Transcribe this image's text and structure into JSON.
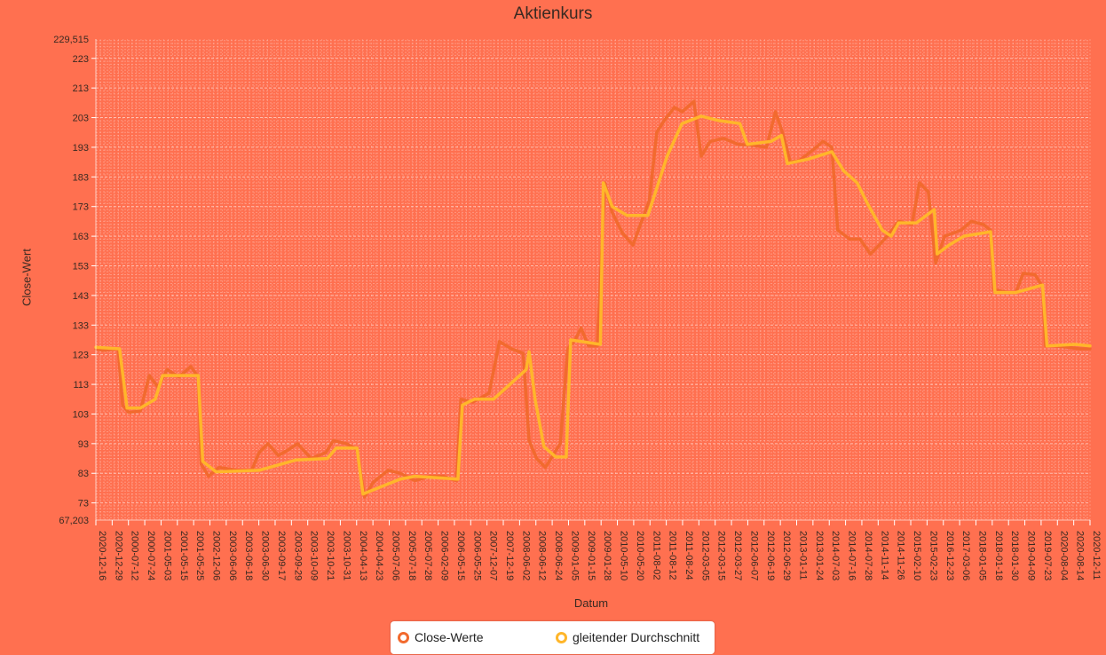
{
  "chart_data": {
    "type": "line",
    "title": "Aktienkurs",
    "xlabel": "Datum",
    "ylabel": "Close-Wert",
    "ylim": [
      67.203,
      229.515
    ],
    "y_ticks": [
      "73",
      "83",
      "93",
      "103",
      "113",
      "123",
      "133",
      "143",
      "153",
      "163",
      "173",
      "183",
      "193",
      "203",
      "213",
      "223"
    ],
    "y_extremes": [
      "67,203",
      "229,515"
    ],
    "x_tick_labels": [
      "2020-12-16",
      "2020-12-29",
      "2000-07-12",
      "2000-07-24",
      "2001-05-03",
      "2001-05-15",
      "2001-05-25",
      "2002-12-06",
      "2003-06-06",
      "2003-06-18",
      "2003-06-30",
      "2003-09-17",
      "2003-09-29",
      "2003-10-09",
      "2003-10-21",
      "2003-10-31",
      "2004-04-13",
      "2004-04-23",
      "2005-07-06",
      "2005-07-18",
      "2005-07-28",
      "2006-02-09",
      "2006-05-15",
      "2006-05-25",
      "2007-12-07",
      "2007-12-19",
      "2008-06-02",
      "2008-06-12",
      "2008-06-24",
      "2009-01-05",
      "2009-01-15",
      "2009-01-28",
      "2010-05-10",
      "2010-05-20",
      "2011-08-02",
      "2011-08-12",
      "2011-08-24",
      "2012-03-05",
      "2012-03-15",
      "2012-03-27",
      "2012-06-07",
      "2012-06-19",
      "2012-06-29",
      "2013-01-11",
      "2013-01-24",
      "2014-07-03",
      "2014-07-16",
      "2014-07-28",
      "2014-11-14",
      "2014-11-26",
      "2015-02-10",
      "2015-02-23",
      "2016-12-23",
      "2017-03-06",
      "2018-01-05",
      "2018-01-18",
      "2018-01-30",
      "2019-04-09",
      "2019-07-23",
      "2020-08-04",
      "2020-08-14",
      "2020-12-11"
    ],
    "grid": true,
    "legend_position": "bottom",
    "series": [
      {
        "name": "Close-Werte",
        "color": "#f26a2e",
        "points": [
          [
            0,
            125
          ],
          [
            0.5,
            124.5
          ],
          [
            1.5,
            125
          ],
          [
            1.8,
            106
          ],
          [
            2.2,
            103.5
          ],
          [
            3,
            104
          ],
          [
            3.6,
            116
          ],
          [
            4.2,
            112
          ],
          [
            4.8,
            118
          ],
          [
            5.6,
            115.5
          ],
          [
            6.4,
            119
          ],
          [
            6.9,
            115.5
          ],
          [
            7.1,
            86
          ],
          [
            7.6,
            82
          ],
          [
            8.3,
            85
          ],
          [
            9.5,
            84
          ],
          [
            10.5,
            84
          ],
          [
            11,
            90
          ],
          [
            11.6,
            93
          ],
          [
            12.3,
            89
          ],
          [
            13,
            91
          ],
          [
            13.6,
            93
          ],
          [
            14.5,
            88
          ],
          [
            15.5,
            90
          ],
          [
            16,
            94
          ],
          [
            16.9,
            93
          ],
          [
            17.6,
            91
          ],
          [
            18.1,
            75
          ],
          [
            18.7,
            80
          ],
          [
            19.7,
            84
          ],
          [
            20.5,
            83
          ],
          [
            21.5,
            80.5
          ],
          [
            22.5,
            82
          ],
          [
            23.4,
            82
          ],
          [
            24.3,
            80.5
          ],
          [
            24.6,
            108
          ],
          [
            25.4,
            107
          ],
          [
            26.5,
            110
          ],
          [
            27.2,
            127.5
          ],
          [
            28,
            125
          ],
          [
            28.8,
            123.5
          ],
          [
            29.2,
            94
          ],
          [
            29.7,
            88
          ],
          [
            30.3,
            85
          ],
          [
            31.3,
            93
          ],
          [
            31.8,
            125
          ],
          [
            32.3,
            128
          ],
          [
            32.7,
            132
          ],
          [
            33.2,
            126
          ],
          [
            33.8,
            126
          ],
          [
            34.3,
            181
          ],
          [
            34.8,
            171
          ],
          [
            35.5,
            164
          ],
          [
            36.2,
            160
          ],
          [
            36.7,
            167
          ],
          [
            37.3,
            175
          ],
          [
            37.8,
            198
          ],
          [
            38.3,
            202
          ],
          [
            39,
            206.5
          ],
          [
            39.5,
            205
          ],
          [
            40.3,
            208.5
          ],
          [
            40.8,
            190
          ],
          [
            41.4,
            195
          ],
          [
            42.3,
            196
          ],
          [
            43.3,
            194
          ],
          [
            44.5,
            193.5
          ],
          [
            45.2,
            193
          ],
          [
            45.8,
            205
          ],
          [
            46.3,
            197.5
          ],
          [
            46.8,
            188
          ],
          [
            47.4,
            188.5
          ],
          [
            48.3,
            192
          ],
          [
            49,
            195
          ],
          [
            49.6,
            193
          ],
          [
            50,
            165
          ],
          [
            50.8,
            162
          ],
          [
            51.5,
            162
          ],
          [
            52.2,
            157
          ],
          [
            52.8,
            160
          ],
          [
            53.5,
            164
          ],
          [
            54.1,
            168
          ],
          [
            55,
            167
          ],
          [
            55.5,
            181
          ],
          [
            56.1,
            178
          ],
          [
            56.6,
            154
          ],
          [
            57.2,
            163
          ],
          [
            58.3,
            165
          ],
          [
            59,
            168
          ],
          [
            59.8,
            167
          ],
          [
            60.3,
            165
          ],
          [
            60.5,
            145
          ],
          [
            61.5,
            144
          ],
          [
            62,
            144
          ],
          [
            62.5,
            150.5
          ],
          [
            63.3,
            150
          ],
          [
            63.8,
            146
          ],
          [
            64,
            126
          ],
          [
            64.6,
            126
          ],
          [
            65.5,
            125.5
          ],
          [
            66.3,
            125
          ],
          [
            67,
            125
          ]
        ]
      },
      {
        "name": "gleitender Durchschnitt",
        "color": "#ffb62a",
        "points": [
          [
            0,
            125.5
          ],
          [
            1.6,
            125
          ],
          [
            2.1,
            105
          ],
          [
            3,
            105
          ],
          [
            4,
            108
          ],
          [
            4.5,
            116
          ],
          [
            5.6,
            116
          ],
          [
            6.9,
            116
          ],
          [
            7.2,
            87
          ],
          [
            8.1,
            83.5
          ],
          [
            11,
            84
          ],
          [
            13.5,
            87.5
          ],
          [
            15.6,
            88
          ],
          [
            16.2,
            91.5
          ],
          [
            17.6,
            91.5
          ],
          [
            18,
            76
          ],
          [
            20.5,
            81
          ],
          [
            21.5,
            82
          ],
          [
            24.4,
            81
          ],
          [
            24.7,
            106
          ],
          [
            25.5,
            108
          ],
          [
            26.8,
            108
          ],
          [
            29,
            118
          ],
          [
            29.2,
            124
          ],
          [
            29.6,
            108
          ],
          [
            30.2,
            92
          ],
          [
            31,
            88.5
          ],
          [
            31.7,
            88.5
          ],
          [
            32,
            128
          ],
          [
            34,
            126.5
          ],
          [
            34.2,
            181
          ],
          [
            34.8,
            173
          ],
          [
            35.8,
            170
          ],
          [
            37.2,
            170
          ],
          [
            38.5,
            190
          ],
          [
            39.5,
            201
          ],
          [
            40.8,
            203.5
          ],
          [
            42,
            202
          ],
          [
            43.4,
            201
          ],
          [
            43.9,
            194
          ],
          [
            45.5,
            195
          ],
          [
            46.2,
            197
          ],
          [
            46.6,
            187.5
          ],
          [
            48,
            189
          ],
          [
            49.6,
            191.5
          ],
          [
            50.4,
            185
          ],
          [
            51.3,
            181
          ],
          [
            52,
            174
          ],
          [
            53,
            165
          ],
          [
            53.6,
            163
          ],
          [
            54.1,
            167.5
          ],
          [
            55.3,
            167.5
          ],
          [
            56.5,
            172
          ],
          [
            56.7,
            157
          ],
          [
            57.5,
            160
          ],
          [
            58.5,
            163
          ],
          [
            60.3,
            164.5
          ],
          [
            60.6,
            144
          ],
          [
            62,
            144
          ],
          [
            63.8,
            146.5
          ],
          [
            64.1,
            126
          ],
          [
            66,
            126.5
          ],
          [
            67,
            126
          ]
        ]
      }
    ]
  }
}
